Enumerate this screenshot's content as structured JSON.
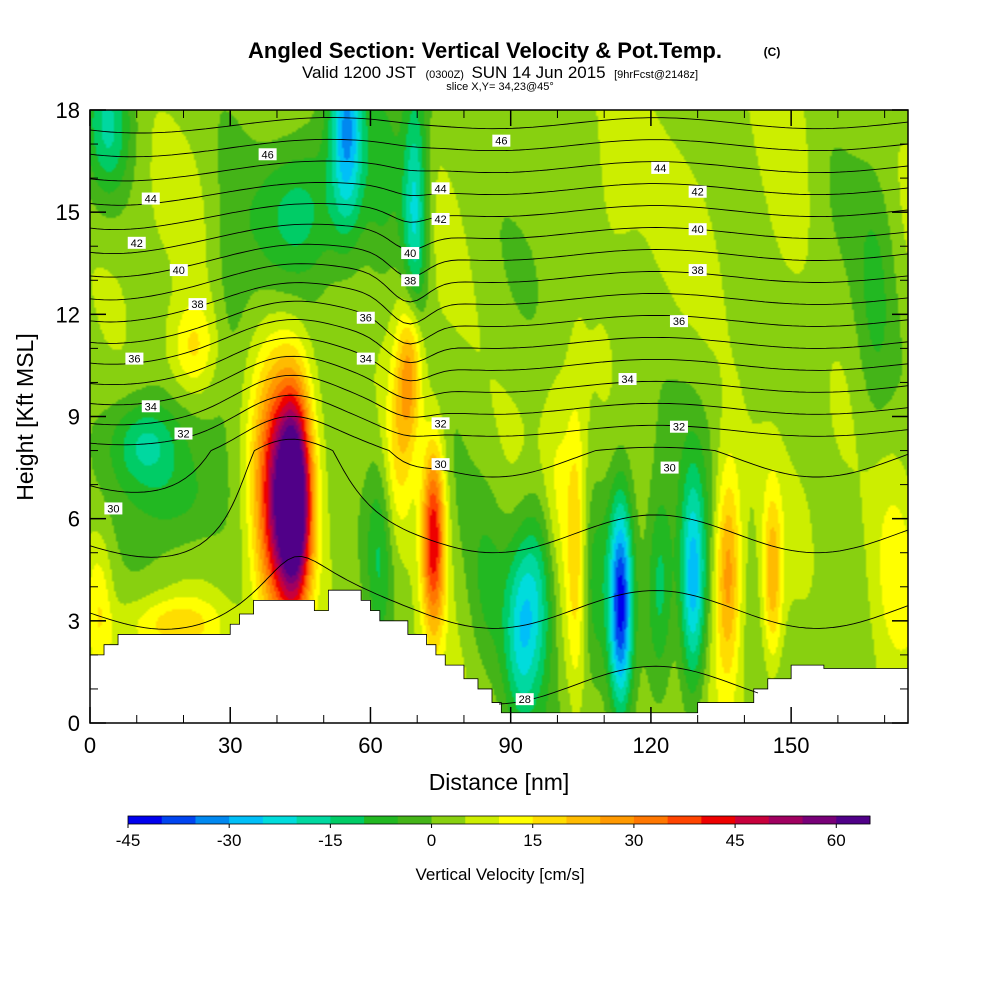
{
  "chart_data": {
    "type": "heatmap",
    "title": "Angled Section: Vertical Velocity & Pot.Temp.",
    "title_mark": "(C)",
    "subtitle_prefix": "Valid 1200 JST",
    "subtitle_zulu": "(0300Z)",
    "subtitle_date": "SUN 14 Jun 2015",
    "subtitle_fcst": "[9hrFcst@2148z]",
    "slice_label": "slice X,Y= 34,23@45°",
    "xlabel": "Distance [nm]",
    "ylabel": "Height [Kft MSL]",
    "xlim": [
      0,
      175
    ],
    "ylim": [
      0,
      18
    ],
    "x_ticks": [
      0,
      30,
      60,
      90,
      120,
      150
    ],
    "y_ticks": [
      0,
      3,
      6,
      9,
      12,
      15,
      18
    ],
    "x_tick_labels": [
      "0",
      "30",
      "60",
      "90",
      "120",
      "150"
    ],
    "y_tick_labels": [
      "0",
      "3",
      "6",
      "9",
      "12",
      "15",
      "18"
    ],
    "colorbar": {
      "title": "Vertical Velocity [cm/s]",
      "min": -45,
      "max": 65,
      "step": 5,
      "tick_values": [
        -45,
        -30,
        -15,
        0,
        15,
        30,
        45,
        60
      ],
      "tick_labels": [
        "-45",
        "-30",
        "-15",
        "0",
        "15",
        "30",
        "45",
        "60"
      ],
      "colors": [
        "#0000ee",
        "#0044f0",
        "#0088f0",
        "#00bff8",
        "#00dcdc",
        "#00d8a0",
        "#00cc66",
        "#22b822",
        "#44b418",
        "#88d010",
        "#ccee00",
        "#ffff00",
        "#ffdd00",
        "#ffbb00",
        "#ff9900",
        "#ff7700",
        "#ff4400",
        "#ee0000",
        "#c8003c",
        "#a00060",
        "#780078",
        "#500088"
      ]
    },
    "theta_contour_labels": [
      {
        "x": 5,
        "y": 6.3,
        "text": "30"
      },
      {
        "x": 20,
        "y": 8.5,
        "text": "32"
      },
      {
        "x": 13,
        "y": 9.3,
        "text": "34"
      },
      {
        "x": 9.5,
        "y": 10.7,
        "text": "36"
      },
      {
        "x": 23,
        "y": 12.3,
        "text": "38"
      },
      {
        "x": 19,
        "y": 13.3,
        "text": "40"
      },
      {
        "x": 10,
        "y": 14.1,
        "text": "42"
      },
      {
        "x": 13,
        "y": 15.4,
        "text": "44"
      },
      {
        "x": 38,
        "y": 16.7,
        "text": "46"
      },
      {
        "x": 59,
        "y": 11.9,
        "text": "36"
      },
      {
        "x": 59,
        "y": 10.7,
        "text": "34"
      },
      {
        "x": 68.5,
        "y": 13.0,
        "text": "38"
      },
      {
        "x": 68.5,
        "y": 13.8,
        "text": "40"
      },
      {
        "x": 75,
        "y": 14.8,
        "text": "42"
      },
      {
        "x": 75,
        "y": 15.7,
        "text": "44"
      },
      {
        "x": 88,
        "y": 17.1,
        "text": "46"
      },
      {
        "x": 75,
        "y": 8.8,
        "text": "32"
      },
      {
        "x": 75,
        "y": 7.6,
        "text": "30"
      },
      {
        "x": 93,
        "y": 0.7,
        "text": "28"
      },
      {
        "x": 122,
        "y": 16.3,
        "text": "44"
      },
      {
        "x": 130,
        "y": 15.6,
        "text": "42"
      },
      {
        "x": 130,
        "y": 14.5,
        "text": "40"
      },
      {
        "x": 130,
        "y": 13.3,
        "text": "38"
      },
      {
        "x": 126,
        "y": 11.8,
        "text": "36"
      },
      {
        "x": 115,
        "y": 10.1,
        "text": "34"
      },
      {
        "x": 126,
        "y": 8.7,
        "text": "32"
      },
      {
        "x": 124,
        "y": 7.5,
        "text": "30"
      }
    ],
    "terrain": [
      [
        0,
        2
      ],
      [
        3,
        2
      ],
      [
        3,
        2.3
      ],
      [
        6,
        2.3
      ],
      [
        6,
        2.6
      ],
      [
        18,
        2.6
      ],
      [
        30,
        2.6
      ],
      [
        30,
        2.9
      ],
      [
        32,
        2.9
      ],
      [
        32,
        3.2
      ],
      [
        35,
        3.2
      ],
      [
        35,
        3.6
      ],
      [
        48,
        3.6
      ],
      [
        48,
        3.3
      ],
      [
        51,
        3.3
      ],
      [
        51,
        3.9
      ],
      [
        58,
        3.9
      ],
      [
        58,
        3.6
      ],
      [
        60,
        3.6
      ],
      [
        60,
        3.3
      ],
      [
        62,
        3.3
      ],
      [
        62,
        3.0
      ],
      [
        68,
        3.0
      ],
      [
        68,
        2.6
      ],
      [
        72,
        2.6
      ],
      [
        72,
        2.3
      ],
      [
        74,
        2.3
      ],
      [
        74,
        2.0
      ],
      [
        76,
        2.0
      ],
      [
        76,
        1.7
      ],
      [
        80,
        1.7
      ],
      [
        80,
        1.3
      ],
      [
        83,
        1.3
      ],
      [
        83,
        1.0
      ],
      [
        86,
        1.0
      ],
      [
        86,
        0.6
      ],
      [
        88,
        0.6
      ],
      [
        88,
        0.3
      ],
      [
        130,
        0.3
      ],
      [
        130,
        0.6
      ],
      [
        142,
        0.6
      ],
      [
        142,
        1.0
      ],
      [
        145,
        1.0
      ],
      [
        145,
        1.3
      ],
      [
        150,
        1.3
      ],
      [
        150,
        1.7
      ],
      [
        157,
        1.7
      ],
      [
        157,
        1.6
      ],
      [
        164,
        1.6
      ],
      [
        175,
        1.6
      ]
    ],
    "velocity_cells": [
      {
        "x": 44,
        "y": 6.5,
        "sx": 2.5,
        "sy": 2.3,
        "v": 58
      },
      {
        "x": 40,
        "y": 6.5,
        "sx": 3.5,
        "sy": 2.8,
        "v": 42
      },
      {
        "x": 73.5,
        "y": 5.5,
        "sx": 1.8,
        "sy": 2.0,
        "v": 42
      },
      {
        "x": 68.5,
        "y": 10.5,
        "sx": 2.0,
        "sy": 1.6,
        "v": 26
      },
      {
        "x": 66,
        "y": 8.0,
        "sx": 2.5,
        "sy": 2.0,
        "v": 14
      },
      {
        "x": 136.5,
        "y": 4.5,
        "sx": 2.0,
        "sy": 2.2,
        "v": 26
      },
      {
        "x": 146,
        "y": 4.2,
        "sx": 1.5,
        "sy": 1.8,
        "v": 20
      },
      {
        "x": 22,
        "y": 11.0,
        "sx": 3.5,
        "sy": 1.0,
        "v": 14
      },
      {
        "x": 18,
        "y": 2.9,
        "sx": 7.0,
        "sy": 0.6,
        "v": 15
      },
      {
        "x": 100,
        "y": 5.5,
        "sx": 2.5,
        "sy": 3.0,
        "v": 10
      },
      {
        "x": 104,
        "y": 5.0,
        "sx": 1.5,
        "sy": 3.0,
        "v": 14
      },
      {
        "x": 2,
        "y": 3.5,
        "sx": 2.0,
        "sy": 1.5,
        "v": 10
      },
      {
        "x": 172,
        "y": 4.0,
        "sx": 4.0,
        "sy": 2.5,
        "v": 10
      },
      {
        "x": 112,
        "y": 16.5,
        "sx": 4.0,
        "sy": 2.5,
        "v": 6
      },
      {
        "x": 150,
        "y": 16.0,
        "sx": 4.0,
        "sy": 2.5,
        "v": 6
      },
      {
        "x": 113.5,
        "y": 3.5,
        "sx": 1.8,
        "sy": 2.2,
        "v": -44
      },
      {
        "x": 129,
        "y": 4.0,
        "sx": 2.0,
        "sy": 2.2,
        "v": -32
      },
      {
        "x": 96,
        "y": 4.0,
        "sx": 3.5,
        "sy": 2.0,
        "v": -22
      },
      {
        "x": 92,
        "y": 2.5,
        "sx": 2.5,
        "sy": 1.8,
        "v": -16
      },
      {
        "x": 122,
        "y": 4.0,
        "sx": 2.0,
        "sy": 2.0,
        "v": -15
      },
      {
        "x": 108,
        "y": 4.0,
        "sx": 2.0,
        "sy": 2.0,
        "v": -10
      },
      {
        "x": 69.5,
        "y": 15.0,
        "sx": 2.0,
        "sy": 2.5,
        "v": -28
      },
      {
        "x": 55,
        "y": 17.5,
        "sx": 2.5,
        "sy": 2.0,
        "v": -32
      },
      {
        "x": 63,
        "y": 16.5,
        "sx": 3.0,
        "sy": 2.0,
        "v": -12
      },
      {
        "x": 45,
        "y": 15.0,
        "sx": 6.0,
        "sy": 1.5,
        "v": -14
      },
      {
        "x": 12,
        "y": 8.2,
        "sx": 5.0,
        "sy": 0.9,
        "v": -18
      },
      {
        "x": 4,
        "y": 17.5,
        "sx": 3.5,
        "sy": 1.5,
        "v": -18
      },
      {
        "x": 18,
        "y": 6.5,
        "sx": 6.0,
        "sy": 1.0,
        "v": -8
      },
      {
        "x": 62,
        "y": 5.0,
        "sx": 2.0,
        "sy": 2.0,
        "v": -12
      },
      {
        "x": 168,
        "y": 12.0,
        "sx": 3.0,
        "sy": 3.0,
        "v": -8
      },
      {
        "x": 85,
        "y": 4.0,
        "sx": 3.0,
        "sy": 2.0,
        "v": -8
      },
      {
        "x": 30,
        "y": 12.5,
        "sx": 3.0,
        "sy": 3.0,
        "v": -6
      }
    ]
  }
}
